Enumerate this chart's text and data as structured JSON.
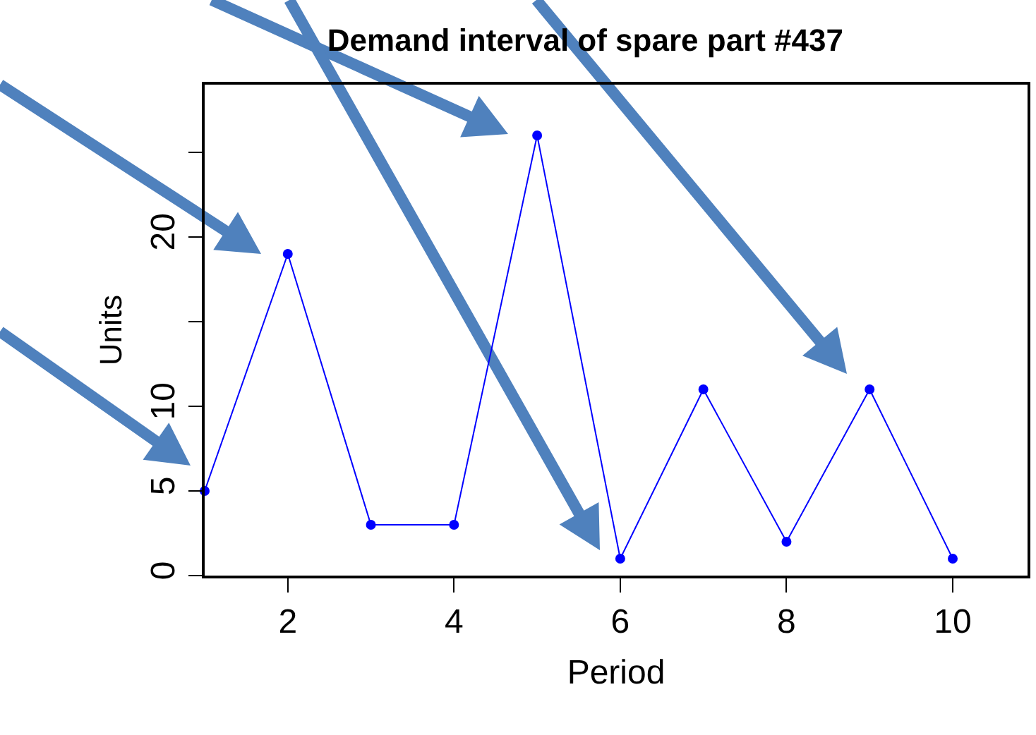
{
  "chart_data": {
    "type": "line",
    "title": "Demand interval of spare part #437",
    "xlabel": "Period",
    "ylabel": "Units",
    "x": [
      1,
      2,
      3,
      4,
      5,
      6,
      7,
      8,
      9,
      10
    ],
    "series": [
      {
        "color": "#0000ff",
        "values": [
          5,
          19,
          3,
          3,
          26,
          1,
          11,
          2,
          11,
          1
        ]
      }
    ],
    "xlim": [
      1,
      10.9
    ],
    "xticks": [
      2,
      4,
      6,
      8,
      10
    ],
    "ylim": [
      0,
      29
    ],
    "yticks": [
      0,
      5,
      10,
      {
        "value": 15,
        "label": null
      },
      20,
      {
        "value": 25,
        "label": null
      }
    ],
    "grid": false,
    "legend": false,
    "marker": "circle",
    "line_style": "solid"
  }
}
